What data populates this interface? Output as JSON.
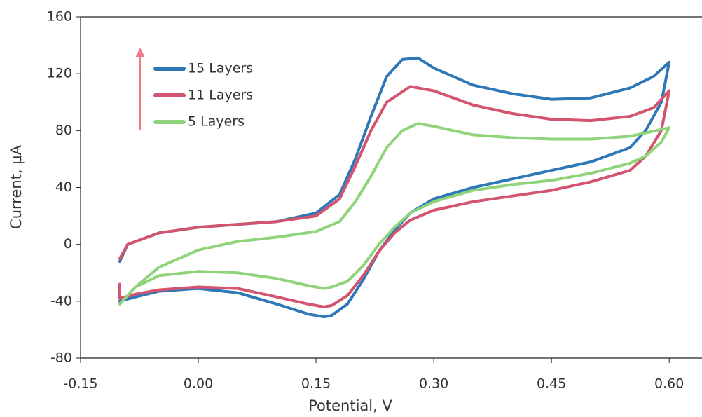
{
  "chart_data": {
    "type": "line",
    "x_label": "Potential, V",
    "y_label": "Current, μA",
    "xlim": [
      -0.15,
      0.64
    ],
    "ylim": [
      -80,
      160
    ],
    "xticks": [
      -0.15,
      {
        "value": 0,
        "label": "0.00"
      },
      0.15,
      {
        "value": 0.3,
        "label": "0.30"
      },
      0.45,
      {
        "value": 0.6,
        "label": "0.60"
      }
    ],
    "yticks": [
      -80,
      -40,
      0,
      40,
      80,
      120,
      160
    ],
    "legend": "upper-left",
    "series": [
      {
        "name": "15 Layers",
        "color": "#2f78b8",
        "x": [
          -0.1,
          -0.09,
          -0.05,
          0,
          0.1,
          0.15,
          0.18,
          0.2,
          0.22,
          0.24,
          0.26,
          0.28,
          0.3,
          0.35,
          0.4,
          0.45,
          0.5,
          0.55,
          0.58,
          0.6,
          0.59,
          0.57,
          0.55,
          0.5,
          0.45,
          0.4,
          0.35,
          0.3,
          0.27,
          0.25,
          0.23,
          0.21,
          0.19,
          0.17,
          0.16,
          0.14,
          0.1,
          0.05,
          0,
          -0.05,
          -0.08,
          -0.1
        ],
        "values": [
          -12,
          0,
          8,
          12,
          16,
          22,
          35,
          60,
          90,
          118,
          130,
          131,
          124,
          112,
          106,
          102,
          103,
          110,
          118,
          128,
          100,
          80,
          68,
          58,
          52,
          46,
          40,
          32,
          22,
          10,
          -5,
          -25,
          -42,
          -50,
          -51,
          -49,
          -42,
          -34,
          -31,
          -33,
          -37,
          -40
        ]
      },
      {
        "name": "11 Layers",
        "color": "#d2546e",
        "x": [
          -0.1,
          -0.09,
          -0.05,
          0,
          0.1,
          0.15,
          0.18,
          0.2,
          0.22,
          0.24,
          0.27,
          0.3,
          0.35,
          0.4,
          0.45,
          0.5,
          0.55,
          0.58,
          0.6,
          0.59,
          0.57,
          0.55,
          0.5,
          0.45,
          0.4,
          0.35,
          0.3,
          0.27,
          0.25,
          0.23,
          0.21,
          0.19,
          0.17,
          0.16,
          0.14,
          0.1,
          0.05,
          0,
          -0.05,
          -0.08,
          -0.1,
          -0.1
        ],
        "values": [
          -10,
          0,
          8,
          12,
          16,
          20,
          32,
          55,
          80,
          100,
          111,
          108,
          98,
          92,
          88,
          87,
          90,
          96,
          108,
          80,
          62,
          52,
          44,
          38,
          34,
          30,
          24,
          17,
          8,
          -5,
          -22,
          -36,
          -43,
          -44,
          -42,
          -37,
          -31,
          -30,
          -32,
          -35,
          -38,
          -28
        ]
      },
      {
        "name": "5 Layers",
        "color": "#8fd47a",
        "x": [
          -0.1,
          -0.08,
          -0.05,
          0,
          0.05,
          0.1,
          0.15,
          0.18,
          0.2,
          0.22,
          0.24,
          0.26,
          0.28,
          0.3,
          0.35,
          0.4,
          0.45,
          0.5,
          0.55,
          0.6,
          0.59,
          0.57,
          0.55,
          0.5,
          0.45,
          0.4,
          0.35,
          0.3,
          0.27,
          0.25,
          0.23,
          0.21,
          0.19,
          0.17,
          0.16,
          0.14,
          0.1,
          0.05,
          0,
          -0.05,
          -0.08,
          -0.1
        ],
        "values": [
          -42,
          -30,
          -16,
          -4,
          2,
          5,
          9,
          16,
          30,
          48,
          68,
          80,
          85,
          83,
          77,
          75,
          74,
          74,
          76,
          82,
          72,
          62,
          57,
          50,
          45,
          42,
          38,
          30,
          22,
          12,
          0,
          -15,
          -26,
          -30,
          -31,
          -29,
          -24,
          -20,
          -19,
          -22,
          -30,
          -42
        ]
      }
    ]
  }
}
